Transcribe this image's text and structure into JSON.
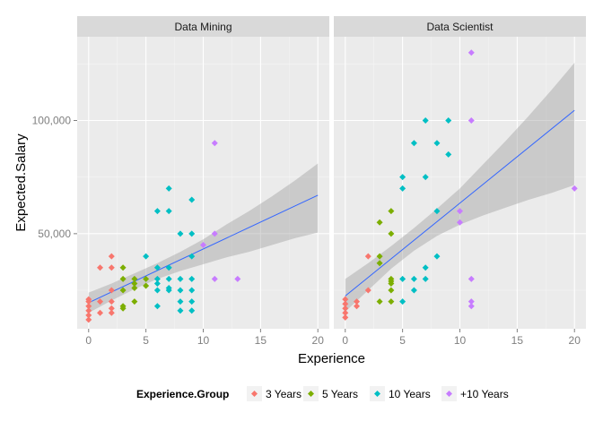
{
  "chart_data": {
    "type": "scatter",
    "xlabel": "Experience",
    "ylabel": "Expected.Salary",
    "xlim": [
      -1,
      21
    ],
    "ylim": [
      8000,
      137000
    ],
    "x_ticks": [
      0,
      5,
      10,
      15,
      20
    ],
    "x_tick_labels": [
      "0",
      "5",
      "10",
      "15",
      "20"
    ],
    "y_ticks": [
      50000,
      100000
    ],
    "y_tick_labels": [
      "50,000",
      "100,000"
    ],
    "grid": true,
    "legend_position": "bottom",
    "legend": {
      "title": "Experience.Group",
      "entries": [
        {
          "label": "3 Years",
          "color": "#F8766D"
        },
        {
          "label": "5 Years",
          "color": "#7CAE00"
        },
        {
          "label": "10 Years",
          "color": "#00BFC4"
        },
        {
          "label": "+10 Years",
          "color": "#C77CFF"
        }
      ]
    },
    "trend_color": "#3366FF",
    "band_color": "#999999",
    "panels": [
      {
        "name": "Data Mining",
        "trend": [
          [
            0,
            19500
          ],
          [
            20,
            67000
          ]
        ],
        "band": [
          [
            0,
            15000,
            24000
          ],
          [
            2,
            20500,
            28000
          ],
          [
            4,
            25500,
            32500
          ],
          [
            6,
            30000,
            37000
          ],
          [
            8,
            33500,
            42000
          ],
          [
            10,
            36500,
            47500
          ],
          [
            12,
            39500,
            54000
          ],
          [
            14,
            42000,
            60000
          ],
          [
            16,
            45000,
            66500
          ],
          [
            18,
            48000,
            73500
          ],
          [
            20,
            50500,
            81000
          ]
        ],
        "series": [
          {
            "group": "3 Years",
            "points": [
              [
                0,
                12000
              ],
              [
                0,
                14000
              ],
              [
                0,
                16000
              ],
              [
                0,
                18000
              ],
              [
                0,
                20000
              ],
              [
                0,
                21000
              ],
              [
                1,
                15000
              ],
              [
                1,
                20000
              ],
              [
                1,
                35000
              ],
              [
                2,
                15000
              ],
              [
                2,
                17000
              ],
              [
                2,
                20000
              ],
              [
                2,
                25000
              ],
              [
                2,
                35000
              ],
              [
                2,
                40000
              ]
            ]
          },
          {
            "group": "5 Years",
            "points": [
              [
                3,
                17000
              ],
              [
                3,
                18000
              ],
              [
                3,
                25000
              ],
              [
                3,
                30000
              ],
              [
                3,
                35000
              ],
              [
                4,
                20000
              ],
              [
                4,
                26000
              ],
              [
                4,
                28000
              ],
              [
                4,
                30000
              ],
              [
                5,
                27000
              ],
              [
                5,
                30000
              ]
            ]
          },
          {
            "group": "10 Years",
            "points": [
              [
                5,
                40000
              ],
              [
                6,
                18000
              ],
              [
                6,
                25000
              ],
              [
                6,
                28000
              ],
              [
                6,
                30000
              ],
              [
                6,
                35000
              ],
              [
                6,
                60000
              ],
              [
                7,
                25000
              ],
              [
                7,
                26000
              ],
              [
                7,
                30000
              ],
              [
                7,
                35000
              ],
              [
                7,
                60000
              ],
              [
                7,
                70000
              ],
              [
                8,
                16000
              ],
              [
                8,
                20000
              ],
              [
                8,
                25000
              ],
              [
                8,
                30000
              ],
              [
                8,
                50000
              ],
              [
                9,
                16000
              ],
              [
                9,
                20000
              ],
              [
                9,
                25000
              ],
              [
                9,
                30000
              ],
              [
                9,
                40000
              ],
              [
                9,
                50000
              ],
              [
                9,
                65000
              ]
            ]
          },
          {
            "group": "+10 Years",
            "points": [
              [
                10,
                45000
              ],
              [
                11,
                30000
              ],
              [
                11,
                50000
              ],
              [
                11,
                90000
              ],
              [
                13,
                30000
              ]
            ]
          }
        ]
      },
      {
        "name": "Data Scientist",
        "trend": [
          [
            0,
            22500
          ],
          [
            20,
            104500
          ]
        ],
        "band": [
          [
            0,
            15500,
            30000
          ],
          [
            2,
            25000,
            37000
          ],
          [
            4,
            34500,
            44500
          ],
          [
            6,
            42500,
            52500
          ],
          [
            8,
            49000,
            61000
          ],
          [
            10,
            54000,
            70000
          ],
          [
            12,
            58000,
            80500
          ],
          [
            14,
            61500,
            91000
          ],
          [
            16,
            65000,
            102000
          ],
          [
            18,
            68000,
            113500
          ],
          [
            20,
            71500,
            125500
          ]
        ],
        "series": [
          {
            "group": "3 Years",
            "points": [
              [
                0,
                13000
              ],
              [
                0,
                15000
              ],
              [
                0,
                17000
              ],
              [
                0,
                19000
              ],
              [
                0,
                21000
              ],
              [
                1,
                18000
              ],
              [
                1,
                20000
              ],
              [
                2,
                25000
              ],
              [
                2,
                40000
              ]
            ]
          },
          {
            "group": "5 Years",
            "points": [
              [
                3,
                20000
              ],
              [
                3,
                37000
              ],
              [
                3,
                40000
              ],
              [
                3,
                55000
              ],
              [
                4,
                20000
              ],
              [
                4,
                25000
              ],
              [
                4,
                28000
              ],
              [
                4,
                29000
              ],
              [
                4,
                30000
              ],
              [
                4,
                50000
              ],
              [
                4,
                60000
              ]
            ]
          },
          {
            "group": "10 Years",
            "points": [
              [
                5,
                20000
              ],
              [
                5,
                30000
              ],
              [
                5,
                70000
              ],
              [
                5,
                75000
              ],
              [
                6,
                25000
              ],
              [
                6,
                30000
              ],
              [
                6,
                90000
              ],
              [
                7,
                30000
              ],
              [
                7,
                35000
              ],
              [
                7,
                75000
              ],
              [
                7,
                100000
              ],
              [
                8,
                40000
              ],
              [
                8,
                60000
              ],
              [
                8,
                90000
              ],
              [
                9,
                85000
              ],
              [
                9,
                100000
              ]
            ]
          },
          {
            "group": "+10 Years",
            "points": [
              [
                10,
                55000
              ],
              [
                10,
                60000
              ],
              [
                11,
                18000
              ],
              [
                11,
                20000
              ],
              [
                11,
                30000
              ],
              [
                11,
                100000
              ],
              [
                11,
                130000
              ],
              [
                20,
                70000
              ]
            ]
          }
        ]
      }
    ]
  }
}
